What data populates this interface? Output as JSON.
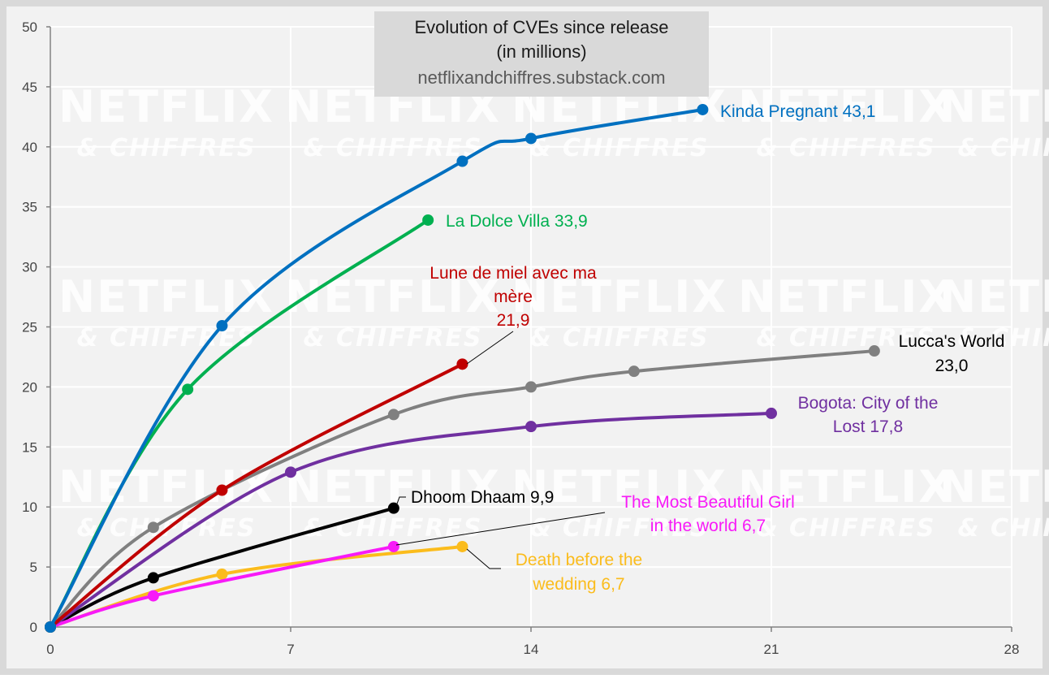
{
  "chart_data": {
    "type": "line",
    "title": "Evolution of CVEs since release",
    "subtitle": "(in millions)",
    "source": "netflixandchiffres.substack.com",
    "watermark": {
      "line1": "NETFLIX",
      "line2": "& CHIFFRES"
    },
    "xlim": [
      0,
      28
    ],
    "ylim": [
      0,
      50
    ],
    "x_ticks": [
      0,
      7,
      14,
      21,
      28
    ],
    "y_ticks": [
      0,
      5,
      10,
      15,
      20,
      25,
      30,
      35,
      40,
      45,
      50
    ],
    "grid": true,
    "colors": {
      "background": "#f2f2f2",
      "frame": "#d9d9d9",
      "grid": "#ffffff",
      "title_box": "#d9d9d9"
    },
    "series": [
      {
        "key": "dhoom",
        "label": "Dhoom Dhaam 9,9",
        "color": "#000000",
        "x": [
          0,
          3,
          10
        ],
        "y": [
          0,
          4.1,
          9.9
        ]
      },
      {
        "key": "death",
        "label": "Death before the wedding 6,7",
        "color": "#fbbc1c",
        "x": [
          0,
          5,
          12
        ],
        "y": [
          0,
          4.4,
          6.7
        ]
      },
      {
        "key": "beautiful",
        "label": "The Most Beautiful Girl in the world 6,7",
        "color": "#f81af8",
        "x": [
          0,
          3,
          10
        ],
        "y": [
          0,
          2.6,
          6.7
        ]
      },
      {
        "key": "lucca",
        "label": "Lucca's World 23,0",
        "color": "#808080",
        "x": [
          0,
          3,
          10,
          14,
          17,
          24
        ],
        "y": [
          0,
          8.3,
          17.7,
          20.0,
          21.3,
          23.0
        ]
      },
      {
        "key": "bogota",
        "label": "Bogota: City of the Lost 17,8",
        "color": "#7030a0",
        "x": [
          0,
          7,
          14,
          21
        ],
        "y": [
          0,
          12.9,
          16.7,
          17.8
        ]
      },
      {
        "key": "lune",
        "label": "Lune de miel avec ma mère 21,9",
        "color": "#c00000",
        "x": [
          0,
          5,
          12
        ],
        "y": [
          0,
          11.4,
          21.9
        ]
      },
      {
        "key": "dolce",
        "label": "La Dolce Villa 33,9",
        "color": "#00b050",
        "x": [
          0,
          4,
          11
        ],
        "y": [
          0,
          19.8,
          33.9
        ]
      },
      {
        "key": "kinda",
        "label": "Kinda Pregnant 43,1",
        "color": "#0070c0",
        "x": [
          0,
          5,
          12,
          14,
          19
        ],
        "y": [
          0,
          25.1,
          38.8,
          40.7,
          43.1
        ]
      }
    ],
    "annotations": [
      {
        "series": "kinda",
        "lines": [
          "Kinda Pregnant 43,1"
        ]
      },
      {
        "series": "dolce",
        "lines": [
          "La Dolce Villa 33,9"
        ]
      },
      {
        "series": "lune",
        "lines": [
          "Lune de miel avec ma",
          "mère",
          "21,9"
        ]
      },
      {
        "series": "lucca",
        "lines": [
          "Lucca's World",
          "23,0"
        ]
      },
      {
        "series": "bogota",
        "lines": [
          "Bogota: City of the",
          "Lost 17,8"
        ]
      },
      {
        "series": "dhoom",
        "lines": [
          "Dhoom Dhaam 9,9"
        ]
      },
      {
        "series": "beautiful",
        "lines": [
          "The Most Beautiful Girl",
          "in the world 6,7"
        ]
      },
      {
        "series": "death",
        "lines": [
          "Death before the",
          "wedding 6,7"
        ]
      }
    ]
  }
}
